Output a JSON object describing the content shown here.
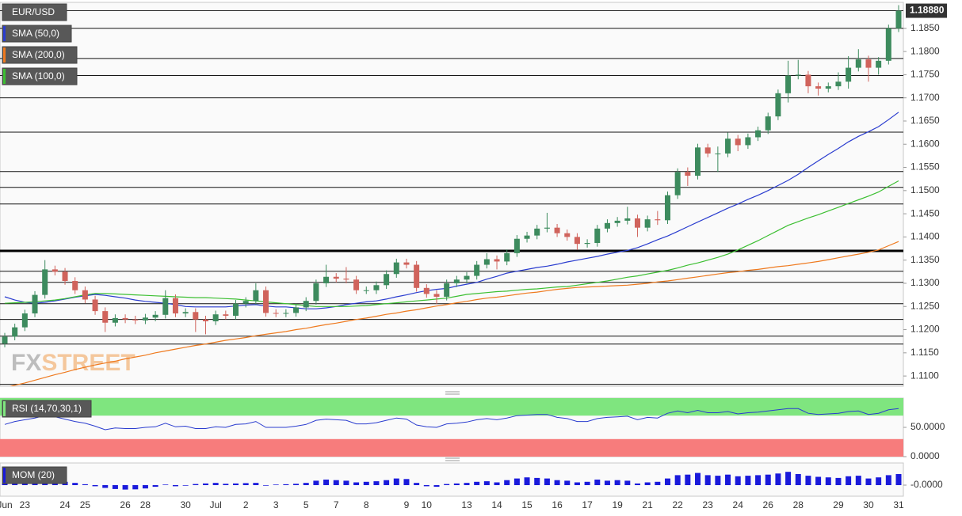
{
  "chart_data": {
    "type": "candlestick",
    "symbol": "EUR/USD",
    "watermark_prefix": "FX",
    "watermark_suffix": "STREET",
    "categories": [
      "Jun",
      null,
      "23",
      null,
      null,
      null,
      "24",
      null,
      "25",
      null,
      null,
      null,
      "26",
      null,
      "28",
      null,
      null,
      null,
      "30",
      null,
      null,
      "Jul",
      null,
      null,
      "2",
      null,
      null,
      "3",
      null,
      null,
      "5",
      null,
      null,
      "7",
      null,
      null,
      "8",
      null,
      null,
      null,
      "9",
      null,
      "10",
      null,
      null,
      null,
      "13",
      null,
      null,
      "14",
      null,
      null,
      "15",
      null,
      null,
      "16",
      null,
      null,
      "17",
      null,
      null,
      "19",
      null,
      null,
      "21",
      null,
      null,
      "22",
      null,
      null,
      "23",
      null,
      null,
      "24",
      null,
      null,
      "26",
      null,
      null,
      "28",
      null,
      null,
      null,
      "29",
      null,
      null,
      "30",
      null,
      null,
      "31"
    ],
    "open": [
      1.117,
      1.1185,
      1.1205,
      1.1235,
      1.1275,
      1.133,
      1.1325,
      1.1305,
      1.1285,
      1.1265,
      1.124,
      1.1215,
      1.1225,
      1.1222,
      1.122,
      1.1226,
      1.1232,
      1.1268,
      1.1235,
      1.1238,
      1.1222,
      1.1218,
      1.1233,
      1.123,
      1.1256,
      1.1262,
      1.1285,
      1.1236,
      1.1235,
      1.1236,
      1.1248,
      1.1262,
      1.13,
      1.1314,
      1.131,
      1.1308,
      1.1285,
      1.1285,
      1.1296,
      1.132,
      1.1345,
      1.134,
      1.129,
      1.1277,
      1.1271,
      1.13,
      1.1308,
      1.1316,
      1.134,
      1.1352,
      1.1347,
      1.1365,
      1.1396,
      1.1403,
      1.1418,
      1.142,
      1.1408,
      1.14,
      1.1385,
      1.1387,
      1.1418,
      1.143,
      1.1435,
      1.144,
      1.142,
      1.1438,
      1.1436,
      1.149,
      1.154,
      1.1532,
      1.1593,
      1.158,
      1.158,
      1.1612,
      1.1598,
      1.1615,
      1.163,
      1.166,
      1.171,
      1.1748,
      1.175,
      1.1725,
      1.172,
      1.1725,
      1.1735,
      1.1765,
      1.1783,
      1.1765,
      1.178,
      1.185
    ],
    "high": [
      1.1193,
      1.1213,
      1.1243,
      1.1283,
      1.135,
      1.1338,
      1.1333,
      1.1313,
      1.1293,
      1.1273,
      1.1248,
      1.1233,
      1.1233,
      1.123,
      1.1234,
      1.124,
      1.1285,
      1.1276,
      1.1246,
      1.1246,
      1.123,
      1.1241,
      1.1241,
      1.1264,
      1.127,
      1.13,
      1.1293,
      1.1244,
      1.1244,
      1.1256,
      1.127,
      1.1308,
      1.134,
      1.1322,
      1.1335,
      1.1316,
      1.1293,
      1.1304,
      1.1328,
      1.1353,
      1.1353,
      1.1348,
      1.1298,
      1.1285,
      1.1308,
      1.1316,
      1.1324,
      1.1348,
      1.1365,
      1.136,
      1.1373,
      1.1404,
      1.1411,
      1.1426,
      1.1452,
      1.1428,
      1.1416,
      1.1408,
      1.1395,
      1.1426,
      1.1438,
      1.1443,
      1.1465,
      1.1448,
      1.1446,
      1.1456,
      1.1498,
      1.1548,
      1.155,
      1.1601,
      1.1601,
      1.1595,
      1.1625,
      1.162,
      1.1623,
      1.1638,
      1.1668,
      1.1718,
      1.178,
      1.1782,
      1.1758,
      1.1733,
      1.1733,
      1.1755,
      1.179,
      1.1805,
      1.1791,
      1.1788,
      1.1858,
      1.19
    ],
    "low": [
      1.1162,
      1.1177,
      1.1197,
      1.1227,
      1.1267,
      1.1317,
      1.1297,
      1.1277,
      1.1257,
      1.1232,
      1.1195,
      1.1207,
      1.1214,
      1.1212,
      1.1212,
      1.1218,
      1.1224,
      1.1227,
      1.1227,
      1.1195,
      1.119,
      1.121,
      1.1222,
      1.1222,
      1.1248,
      1.1254,
      1.1228,
      1.1227,
      1.1227,
      1.1228,
      1.124,
      1.1254,
      1.1292,
      1.1302,
      1.13,
      1.1277,
      1.1277,
      1.1277,
      1.1288,
      1.1312,
      1.1332,
      1.1282,
      1.1269,
      1.1255,
      1.1263,
      1.1292,
      1.13,
      1.1308,
      1.1332,
      1.133,
      1.1339,
      1.1357,
      1.1388,
      1.1395,
      1.141,
      1.14,
      1.1392,
      1.1372,
      1.1377,
      1.1379,
      1.141,
      1.1422,
      1.1427,
      1.14,
      1.1412,
      1.1426,
      1.1428,
      1.1482,
      1.151,
      1.1524,
      1.1572,
      1.154,
      1.1572,
      1.1585,
      1.159,
      1.1607,
      1.1622,
      1.1652,
      1.169,
      1.174,
      1.171,
      1.1705,
      1.1712,
      1.1717,
      1.172,
      1.1757,
      1.1735,
      1.175,
      1.1772,
      1.1842
    ],
    "close": [
      1.1185,
      1.1205,
      1.1235,
      1.1275,
      1.133,
      1.1325,
      1.1305,
      1.1285,
      1.1265,
      1.124,
      1.1215,
      1.1225,
      1.1222,
      1.122,
      1.1226,
      1.1232,
      1.1268,
      1.1235,
      1.1238,
      1.1222,
      1.1218,
      1.1233,
      1.123,
      1.1256,
      1.1262,
      1.1285,
      1.1236,
      1.1235,
      1.1236,
      1.1248,
      1.1262,
      1.13,
      1.1314,
      1.131,
      1.1308,
      1.1285,
      1.1285,
      1.1296,
      1.132,
      1.1345,
      1.134,
      1.129,
      1.1277,
      1.1271,
      1.13,
      1.1308,
      1.1316,
      1.134,
      1.1352,
      1.1347,
      1.1365,
      1.1396,
      1.1403,
      1.1418,
      1.142,
      1.1408,
      1.14,
      1.1385,
      1.1387,
      1.1418,
      1.143,
      1.1435,
      1.144,
      1.142,
      1.1438,
      1.1436,
      1.149,
      1.154,
      1.1532,
      1.1593,
      1.158,
      1.158,
      1.1612,
      1.1598,
      1.1615,
      1.163,
      1.166,
      1.171,
      1.1748,
      1.175,
      1.1725,
      1.172,
      1.1725,
      1.1735,
      1.1765,
      1.1783,
      1.1765,
      1.178,
      1.185,
      1.1888
    ],
    "up_color": "#3d8b5e",
    "down_color": "#d0635c",
    "ylim": [
      1.1078,
      1.1906
    ],
    "yticks": [
      {
        "value": 1.185,
        "label": "1.1850"
      },
      {
        "value": 1.18,
        "label": "1.1800"
      },
      {
        "value": 1.175,
        "label": "1.1750"
      },
      {
        "value": 1.17,
        "label": "1.1700"
      },
      {
        "value": 1.165,
        "label": "1.1650"
      },
      {
        "value": 1.16,
        "label": "1.1600"
      },
      {
        "value": 1.155,
        "label": "1.1550"
      },
      {
        "value": 1.15,
        "label": "1.1500"
      },
      {
        "value": 1.145,
        "label": "1.1450"
      },
      {
        "value": 1.14,
        "label": "1.1400"
      },
      {
        "value": 1.135,
        "label": "1.1350"
      },
      {
        "value": 1.13,
        "label": "1.1300"
      },
      {
        "value": 1.125,
        "label": "1.1250"
      },
      {
        "value": 1.12,
        "label": "1.1200"
      },
      {
        "value": 1.115,
        "label": "1.1150"
      },
      {
        "value": 1.11,
        "label": "1.1100"
      }
    ],
    "last_price": {
      "value": 1.1888,
      "label": "1.18880"
    },
    "levels": [
      1.185,
      1.1785,
      1.1748,
      1.17,
      1.1626,
      1.1541,
      1.1507,
      1.1471,
      1.1326,
      1.1302,
      1.1256,
      1.1222,
      1.1186,
      1.1169,
      1.1082
    ],
    "key_level": 1.137,
    "overlays": [
      {
        "name": "SMA (50,0)",
        "color": "#2a3ccf",
        "values": [
          1.1271,
          1.1264,
          1.1259,
          1.1257,
          1.1259,
          1.1262,
          1.1266,
          1.127,
          1.1273,
          1.1276,
          1.1274,
          1.1271,
          1.1268,
          1.1264,
          1.1261,
          1.1259,
          1.1257,
          1.1254,
          1.125,
          1.1249,
          1.1249,
          1.1249,
          1.1249,
          1.1251,
          1.1253,
          1.1254,
          1.1251,
          1.1249,
          1.1249,
          1.1247,
          1.1245,
          1.1245,
          1.1247,
          1.125,
          1.1254,
          1.1257,
          1.126,
          1.1262,
          1.1266,
          1.1271,
          1.1275,
          1.128,
          1.1284,
          1.1287,
          1.1289,
          1.1294,
          1.1298,
          1.1302,
          1.1309,
          1.1315,
          1.1322,
          1.1326,
          1.133,
          1.1334,
          1.1337,
          1.1341,
          1.1346,
          1.135,
          1.1354,
          1.1358,
          1.1363,
          1.1367,
          1.1371,
          1.1377,
          1.1385,
          1.1394,
          1.1402,
          1.1412,
          1.1422,
          1.1432,
          1.1442,
          1.1452,
          1.1462,
          1.1471,
          1.1481,
          1.149,
          1.15,
          1.1511,
          1.1522,
          1.1535,
          1.155,
          1.1564,
          1.1578,
          1.1591,
          1.1605,
          1.1617,
          1.1627,
          1.1638,
          1.1653,
          1.1669
        ]
      },
      {
        "name": "SMA (200,0)",
        "color": "#ef7a1f",
        "values": [
          1.1074,
          1.108,
          1.1085,
          1.1091,
          1.1097,
          1.1103,
          1.1108,
          1.1114,
          1.1119,
          1.1124,
          1.1128,
          1.1132,
          1.1137,
          1.1141,
          1.1145,
          1.115,
          1.1154,
          1.1158,
          1.1162,
          1.1166,
          1.1169,
          1.1173,
          1.1177,
          1.118,
          1.1183,
          1.1187,
          1.119,
          1.1193,
          1.1196,
          1.12,
          1.1203,
          1.1207,
          1.1211,
          1.1214,
          1.1218,
          1.1222,
          1.1225,
          1.1229,
          1.1233,
          1.1236,
          1.124,
          1.1243,
          1.1247,
          1.1251,
          1.1254,
          1.1258,
          1.1261,
          1.1265,
          1.1268,
          1.127,
          1.1273,
          1.1276,
          1.1279,
          1.1281,
          1.1284,
          1.1287,
          1.1289,
          1.1291,
          1.1292,
          1.1293,
          1.1294,
          1.1295,
          1.1296,
          1.1298,
          1.13,
          1.1303,
          1.1305,
          1.1308,
          1.1311,
          1.1314,
          1.1317,
          1.132,
          1.1323,
          1.1325,
          1.1328,
          1.133,
          1.1333,
          1.1336,
          1.1338,
          1.1341,
          1.1344,
          1.1347,
          1.1351,
          1.1355,
          1.1359,
          1.1363,
          1.1367,
          1.1372,
          1.1381,
          1.139
        ]
      },
      {
        "name": "SMA (100,0)",
        "color": "#3cbf32",
        "values": [
          1.1257,
          1.1258,
          1.1259,
          1.126,
          1.1262,
          1.1264,
          1.1267,
          1.1271,
          1.1275,
          1.1278,
          1.1278,
          1.1277,
          1.1276,
          1.1275,
          1.1274,
          1.1273,
          1.1272,
          1.1271,
          1.127,
          1.1269,
          1.1269,
          1.1268,
          1.1267,
          1.1266,
          1.1264,
          1.1262,
          1.126,
          1.1258,
          1.1256,
          1.1254,
          1.1252,
          1.125,
          1.125,
          1.125,
          1.125,
          1.1251,
          1.1252,
          1.1254,
          1.1256,
          1.1258,
          1.126,
          1.1262,
          1.1264,
          1.1266,
          1.1268,
          1.1272,
          1.1276,
          1.1278,
          1.128,
          1.1282,
          1.1283,
          1.1285,
          1.1287,
          1.1288,
          1.129,
          1.1292,
          1.1293,
          1.1296,
          1.1299,
          1.1302,
          1.1305,
          1.1309,
          1.1313,
          1.1316,
          1.132,
          1.1324,
          1.1328,
          1.1333,
          1.1339,
          1.1344,
          1.135,
          1.1356,
          1.1363,
          1.1372,
          1.1382,
          1.1392,
          1.1403,
          1.1414,
          1.1425,
          1.1433,
          1.1441,
          1.1448,
          1.1456,
          1.1464,
          1.1472,
          1.148,
          1.1488,
          1.1497,
          1.1509,
          1.1521
        ]
      }
    ],
    "indicators": [
      {
        "type": "line",
        "name": "RSI (14,70,30,1)",
        "color": "#2a3ccf",
        "ylim": [
          0,
          100
        ],
        "yticks": [
          {
            "value": 50,
            "label": "50.0000"
          },
          {
            "value": 0,
            "label": "0.0000"
          }
        ],
        "bands": {
          "upper": 70,
          "lower": 30,
          "upper_color": "#7fe57f",
          "lower_color": "#f77c7c"
        },
        "values": [
          55,
          60,
          63,
          66,
          70,
          68,
          64,
          60,
          57,
          52,
          46,
          49,
          48,
          48,
          50,
          51,
          57,
          51,
          52,
          48,
          48,
          51,
          50,
          55,
          56,
          60,
          50,
          50,
          50,
          52,
          55,
          62,
          64,
          63,
          62,
          56,
          56,
          58,
          62,
          66,
          64,
          54,
          51,
          50,
          56,
          57,
          59,
          63,
          65,
          63,
          66,
          70,
          71,
          72,
          72,
          67,
          65,
          60,
          60,
          65,
          67,
          68,
          69,
          63,
          67,
          66,
          74,
          78,
          75,
          79,
          75,
          75,
          77,
          73,
          75,
          76,
          78,
          80,
          82,
          82,
          74,
          72,
          73,
          74,
          77,
          78,
          72,
          74,
          80,
          82
        ]
      },
      {
        "type": "bar",
        "name": "MOM (20)",
        "color": "#1a1adb",
        "ylim": [
          -0.01,
          0.02
        ],
        "yticks": [
          {
            "value": 0,
            "label": "-0.0000"
          }
        ],
        "values": [
          0.003,
          0.0032,
          0.0035,
          0.0038,
          0.004,
          0.0036,
          0.003,
          0.002,
          0.0008,
          -0.001,
          -0.0025,
          -0.0035,
          -0.004,
          -0.0038,
          -0.003,
          -0.0015,
          0.0005,
          -0.001,
          -0.0005,
          0.001,
          0.0015,
          0.002,
          0.0012,
          0.0015,
          0.0018,
          0.002,
          -0.0005,
          0.0005,
          0.0008,
          0.0012,
          0.002,
          0.004,
          0.005,
          0.0045,
          0.004,
          0.0025,
          0.003,
          0.0035,
          0.0045,
          0.006,
          0.0055,
          0.002,
          -0.001,
          -0.0015,
          0.001,
          0.0015,
          0.002,
          0.003,
          0.0035,
          0.0025,
          0.0045,
          0.006,
          0.007,
          0.0065,
          0.006,
          0.0045,
          0.004,
          0.0025,
          0.003,
          0.005,
          0.004,
          0.0045,
          0.004,
          0.0015,
          0.0025,
          0.003,
          0.006,
          0.009,
          0.0095,
          0.011,
          0.009,
          0.0085,
          0.0095,
          0.008,
          0.0085,
          0.009,
          0.0095,
          0.0105,
          0.012,
          0.01,
          0.0085,
          0.0075,
          0.007,
          0.0065,
          0.008,
          0.0085,
          0.006,
          0.007,
          0.009,
          0.01
        ]
      }
    ]
  }
}
